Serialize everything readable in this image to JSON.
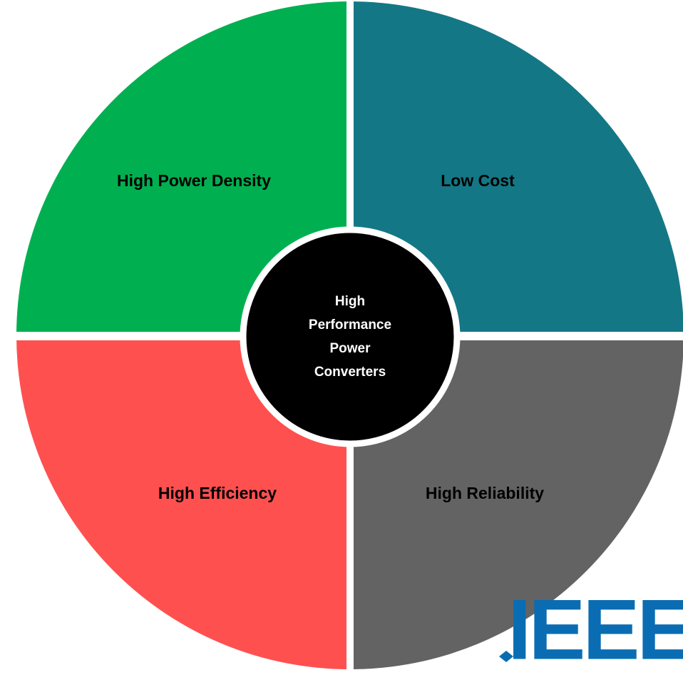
{
  "center": {
    "lines": [
      "High",
      "Performance",
      "Power",
      "Converters"
    ]
  },
  "quadrants": [
    {
      "label": "High Power Density"
    },
    {
      "label": "Low Cost"
    },
    {
      "label": "High Efficiency"
    },
    {
      "label": "High Reliability"
    }
  ],
  "logo": {
    "text": "IEEE"
  }
}
